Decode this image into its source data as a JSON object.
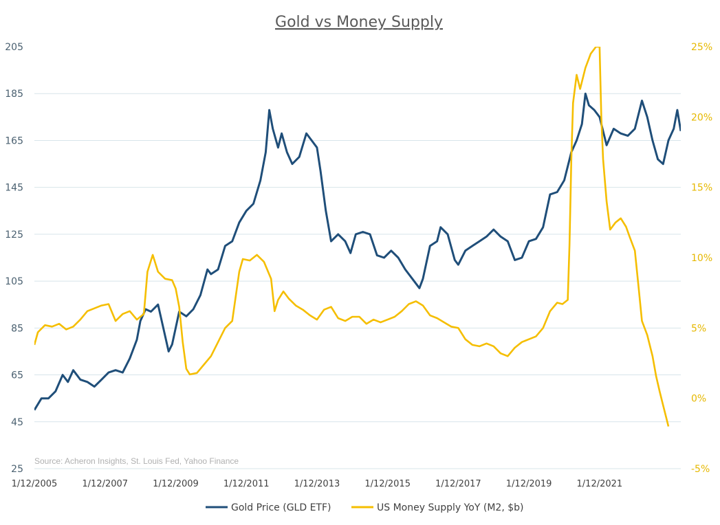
{
  "chart_data": {
    "type": "line",
    "title": "Gold vs Money Supply",
    "source_note": "Source: Acheron Insights, St. Louis Fed, Yahoo Finance",
    "x_range": [
      2005.0,
      2023.3
    ],
    "x_ticks": [
      "1/12/2005",
      "1/12/2007",
      "1/12/2009",
      "1/12/2011",
      "1/12/2013",
      "1/12/2015",
      "1/12/2017",
      "1/12/2019",
      "1/12/2021"
    ],
    "y_left": {
      "range": [
        25,
        205
      ],
      "ticks": [
        "205",
        "185",
        "165",
        "145",
        "125",
        "105",
        "85",
        "65",
        "45",
        "25"
      ]
    },
    "y_right": {
      "range": [
        -5,
        25
      ],
      "ticks": [
        "25%",
        "20%",
        "15%",
        "10%",
        "5%",
        "0%",
        "-5%"
      ]
    },
    "grid": true,
    "legend_position": "bottom",
    "series": [
      {
        "name": "Gold Price (GLD ETF)",
        "axis": "left",
        "color": "#1f4e79",
        "points": [
          [
            2005.0,
            50
          ],
          [
            2005.2,
            55
          ],
          [
            2005.4,
            55
          ],
          [
            2005.6,
            58
          ],
          [
            2005.8,
            65
          ],
          [
            2005.95,
            62
          ],
          [
            2006.1,
            67
          ],
          [
            2006.3,
            63
          ],
          [
            2006.5,
            62
          ],
          [
            2006.7,
            60
          ],
          [
            2006.9,
            63
          ],
          [
            2007.1,
            66
          ],
          [
            2007.3,
            67
          ],
          [
            2007.5,
            66
          ],
          [
            2007.7,
            72
          ],
          [
            2007.9,
            80
          ],
          [
            2008.0,
            88
          ],
          [
            2008.15,
            93
          ],
          [
            2008.3,
            92
          ],
          [
            2008.5,
            95
          ],
          [
            2008.65,
            85
          ],
          [
            2008.8,
            75
          ],
          [
            2008.9,
            78
          ],
          [
            2009.1,
            92
          ],
          [
            2009.3,
            90
          ],
          [
            2009.5,
            93
          ],
          [
            2009.7,
            99
          ],
          [
            2009.9,
            110
          ],
          [
            2010.0,
            108
          ],
          [
            2010.2,
            110
          ],
          [
            2010.4,
            120
          ],
          [
            2010.6,
            122
          ],
          [
            2010.8,
            130
          ],
          [
            2011.0,
            135
          ],
          [
            2011.2,
            138
          ],
          [
            2011.4,
            148
          ],
          [
            2011.55,
            160
          ],
          [
            2011.65,
            178
          ],
          [
            2011.75,
            170
          ],
          [
            2011.9,
            162
          ],
          [
            2012.0,
            168
          ],
          [
            2012.15,
            160
          ],
          [
            2012.3,
            155
          ],
          [
            2012.5,
            158
          ],
          [
            2012.7,
            168
          ],
          [
            2012.85,
            165
          ],
          [
            2013.0,
            162
          ],
          [
            2013.1,
            152
          ],
          [
            2013.25,
            135
          ],
          [
            2013.4,
            122
          ],
          [
            2013.6,
            125
          ],
          [
            2013.8,
            122
          ],
          [
            2013.95,
            117
          ],
          [
            2014.1,
            125
          ],
          [
            2014.3,
            126
          ],
          [
            2014.5,
            125
          ],
          [
            2014.7,
            116
          ],
          [
            2014.9,
            115
          ],
          [
            2015.1,
            118
          ],
          [
            2015.3,
            115
          ],
          [
            2015.5,
            110
          ],
          [
            2015.7,
            106
          ],
          [
            2015.9,
            102
          ],
          [
            2016.0,
            106
          ],
          [
            2016.2,
            120
          ],
          [
            2016.4,
            122
          ],
          [
            2016.5,
            128
          ],
          [
            2016.7,
            125
          ],
          [
            2016.9,
            114
          ],
          [
            2017.0,
            112
          ],
          [
            2017.2,
            118
          ],
          [
            2017.4,
            120
          ],
          [
            2017.6,
            122
          ],
          [
            2017.8,
            124
          ],
          [
            2018.0,
            127
          ],
          [
            2018.2,
            124
          ],
          [
            2018.4,
            122
          ],
          [
            2018.6,
            114
          ],
          [
            2018.8,
            115
          ],
          [
            2019.0,
            122
          ],
          [
            2019.2,
            123
          ],
          [
            2019.4,
            128
          ],
          [
            2019.6,
            142
          ],
          [
            2019.8,
            143
          ],
          [
            2020.0,
            148
          ],
          [
            2020.2,
            160
          ],
          [
            2020.35,
            165
          ],
          [
            2020.5,
            172
          ],
          [
            2020.6,
            185
          ],
          [
            2020.7,
            180
          ],
          [
            2020.85,
            178
          ],
          [
            2021.0,
            175
          ],
          [
            2021.2,
            163
          ],
          [
            2021.4,
            170
          ],
          [
            2021.6,
            168
          ],
          [
            2021.8,
            167
          ],
          [
            2022.0,
            170
          ],
          [
            2022.2,
            182
          ],
          [
            2022.35,
            175
          ],
          [
            2022.5,
            165
          ],
          [
            2022.65,
            157
          ],
          [
            2022.8,
            155
          ],
          [
            2022.95,
            165
          ],
          [
            2023.1,
            170
          ],
          [
            2023.2,
            178
          ],
          [
            2023.3,
            169
          ]
        ]
      },
      {
        "name": "US Money Supply YoY (M2, $b)",
        "axis": "right",
        "color": "#f5be00",
        "points": [
          [
            2005.0,
            3.8
          ],
          [
            2005.1,
            4.7
          ],
          [
            2005.3,
            5.2
          ],
          [
            2005.5,
            5.1
          ],
          [
            2005.7,
            5.3
          ],
          [
            2005.9,
            4.9
          ],
          [
            2006.1,
            5.1
          ],
          [
            2006.3,
            5.6
          ],
          [
            2006.5,
            6.2
          ],
          [
            2006.7,
            6.4
          ],
          [
            2006.9,
            6.6
          ],
          [
            2007.1,
            6.7
          ],
          [
            2007.3,
            5.5
          ],
          [
            2007.5,
            6.0
          ],
          [
            2007.7,
            6.2
          ],
          [
            2007.9,
            5.6
          ],
          [
            2008.1,
            6.0
          ],
          [
            2008.2,
            9.0
          ],
          [
            2008.35,
            10.2
          ],
          [
            2008.5,
            9.0
          ],
          [
            2008.7,
            8.5
          ],
          [
            2008.9,
            8.4
          ],
          [
            2009.0,
            7.8
          ],
          [
            2009.1,
            6.5
          ],
          [
            2009.2,
            4.0
          ],
          [
            2009.3,
            2.1
          ],
          [
            2009.4,
            1.7
          ],
          [
            2009.6,
            1.8
          ],
          [
            2009.8,
            2.4
          ],
          [
            2010.0,
            3.0
          ],
          [
            2010.2,
            4.0
          ],
          [
            2010.4,
            5.0
          ],
          [
            2010.6,
            5.5
          ],
          [
            2010.8,
            9.0
          ],
          [
            2010.9,
            9.9
          ],
          [
            2011.1,
            9.8
          ],
          [
            2011.3,
            10.2
          ],
          [
            2011.5,
            9.7
          ],
          [
            2011.7,
            8.5
          ],
          [
            2011.8,
            6.2
          ],
          [
            2011.9,
            7.0
          ],
          [
            2012.05,
            7.6
          ],
          [
            2012.2,
            7.1
          ],
          [
            2012.4,
            6.6
          ],
          [
            2012.6,
            6.3
          ],
          [
            2012.8,
            5.9
          ],
          [
            2013.0,
            5.6
          ],
          [
            2013.2,
            6.3
          ],
          [
            2013.4,
            6.5
          ],
          [
            2013.6,
            5.7
          ],
          [
            2013.8,
            5.5
          ],
          [
            2014.0,
            5.8
          ],
          [
            2014.2,
            5.8
          ],
          [
            2014.4,
            5.3
          ],
          [
            2014.6,
            5.6
          ],
          [
            2014.8,
            5.4
          ],
          [
            2015.0,
            5.6
          ],
          [
            2015.2,
            5.8
          ],
          [
            2015.4,
            6.2
          ],
          [
            2015.6,
            6.7
          ],
          [
            2015.8,
            6.9
          ],
          [
            2016.0,
            6.6
          ],
          [
            2016.2,
            5.9
          ],
          [
            2016.4,
            5.7
          ],
          [
            2016.6,
            5.4
          ],
          [
            2016.8,
            5.1
          ],
          [
            2017.0,
            5.0
          ],
          [
            2017.2,
            4.2
          ],
          [
            2017.4,
            3.8
          ],
          [
            2017.6,
            3.7
          ],
          [
            2017.8,
            3.9
          ],
          [
            2018.0,
            3.7
          ],
          [
            2018.2,
            3.2
          ],
          [
            2018.4,
            3.0
          ],
          [
            2018.6,
            3.6
          ],
          [
            2018.8,
            4.0
          ],
          [
            2019.0,
            4.2
          ],
          [
            2019.2,
            4.4
          ],
          [
            2019.4,
            5.0
          ],
          [
            2019.6,
            6.2
          ],
          [
            2019.8,
            6.8
          ],
          [
            2019.95,
            6.7
          ],
          [
            2020.1,
            7.0
          ],
          [
            2020.15,
            11.0
          ],
          [
            2020.2,
            17.0
          ],
          [
            2020.25,
            21.0
          ],
          [
            2020.35,
            23.0
          ],
          [
            2020.45,
            22.0
          ],
          [
            2020.6,
            23.5
          ],
          [
            2020.75,
            24.5
          ],
          [
            2020.9,
            25.0
          ],
          [
            2021.0,
            25.0
          ],
          [
            2021.05,
            20.0
          ],
          [
            2021.1,
            17.0
          ],
          [
            2021.2,
            14.0
          ],
          [
            2021.3,
            12.0
          ],
          [
            2021.45,
            12.5
          ],
          [
            2021.6,
            12.8
          ],
          [
            2021.75,
            12.2
          ],
          [
            2021.85,
            11.5
          ],
          [
            2022.0,
            10.5
          ],
          [
            2022.1,
            8.0
          ],
          [
            2022.2,
            5.5
          ],
          [
            2022.35,
            4.5
          ],
          [
            2022.5,
            3.0
          ],
          [
            2022.6,
            1.6
          ],
          [
            2022.7,
            0.5
          ],
          [
            2022.8,
            -0.5
          ],
          [
            2022.9,
            -1.5
          ],
          [
            2022.95,
            -2.0
          ]
        ]
      }
    ]
  }
}
